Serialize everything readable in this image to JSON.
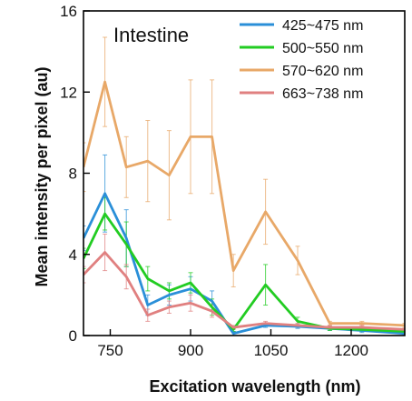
{
  "chart_data": {
    "type": "line",
    "title": "Intestine",
    "xlabel": "Excitation wavelength (nm)",
    "ylabel": "Mean intensity per pixel (au)",
    "xlim": [
      700,
      1300
    ],
    "ylim": [
      0,
      16
    ],
    "xticks": [
      750,
      900,
      1050,
      1200
    ],
    "yticks": [
      0,
      4,
      8,
      12,
      16
    ],
    "grid": false,
    "legend_position": "top-right",
    "x": [
      700,
      740,
      780,
      820,
      860,
      900,
      940,
      980,
      1040,
      1100,
      1160,
      1220,
      1300
    ],
    "series": [
      {
        "name": "425~475 nm",
        "color": "#2a8fd8",
        "values": [
          4.8,
          7.0,
          4.8,
          1.5,
          2.0,
          2.3,
          1.7,
          0.1,
          0.5,
          0.45,
          0.35,
          0.25,
          0.1
        ],
        "errors": [
          0.6,
          1.9,
          1.4,
          0.5,
          0.5,
          0.6,
          0.5,
          0.1,
          0.1,
          0.1,
          0.1,
          0.1,
          0.05
        ]
      },
      {
        "name": "500~550 nm",
        "color": "#22cc22",
        "values": [
          3.8,
          6.0,
          4.5,
          2.8,
          2.2,
          2.6,
          1.4,
          0.3,
          2.5,
          0.7,
          0.35,
          0.3,
          0.2
        ],
        "errors": [
          0.5,
          0.8,
          1.1,
          0.6,
          0.4,
          0.5,
          0.4,
          0.1,
          1.0,
          0.2,
          0.1,
          0.1,
          0.05
        ]
      },
      {
        "name": "570~620 nm",
        "color": "#e8a868",
        "values": [
          8.3,
          12.5,
          8.3,
          8.6,
          7.9,
          9.8,
          9.8,
          3.2,
          6.1,
          3.7,
          0.6,
          0.6,
          0.5
        ],
        "errors": [
          1.2,
          2.2,
          1.5,
          2.0,
          2.2,
          2.8,
          2.8,
          0.8,
          1.6,
          0.7,
          0.1,
          0.1,
          0.1
        ]
      },
      {
        "name": "663~738 nm",
        "color": "#e08080",
        "values": [
          3.0,
          4.1,
          2.9,
          1.0,
          1.4,
          1.6,
          1.2,
          0.4,
          0.6,
          0.5,
          0.4,
          0.4,
          0.3
        ],
        "errors": [
          0.4,
          0.9,
          0.6,
          0.3,
          0.3,
          0.4,
          0.3,
          0.1,
          0.1,
          0.1,
          0.1,
          0.1,
          0.05
        ]
      }
    ]
  }
}
